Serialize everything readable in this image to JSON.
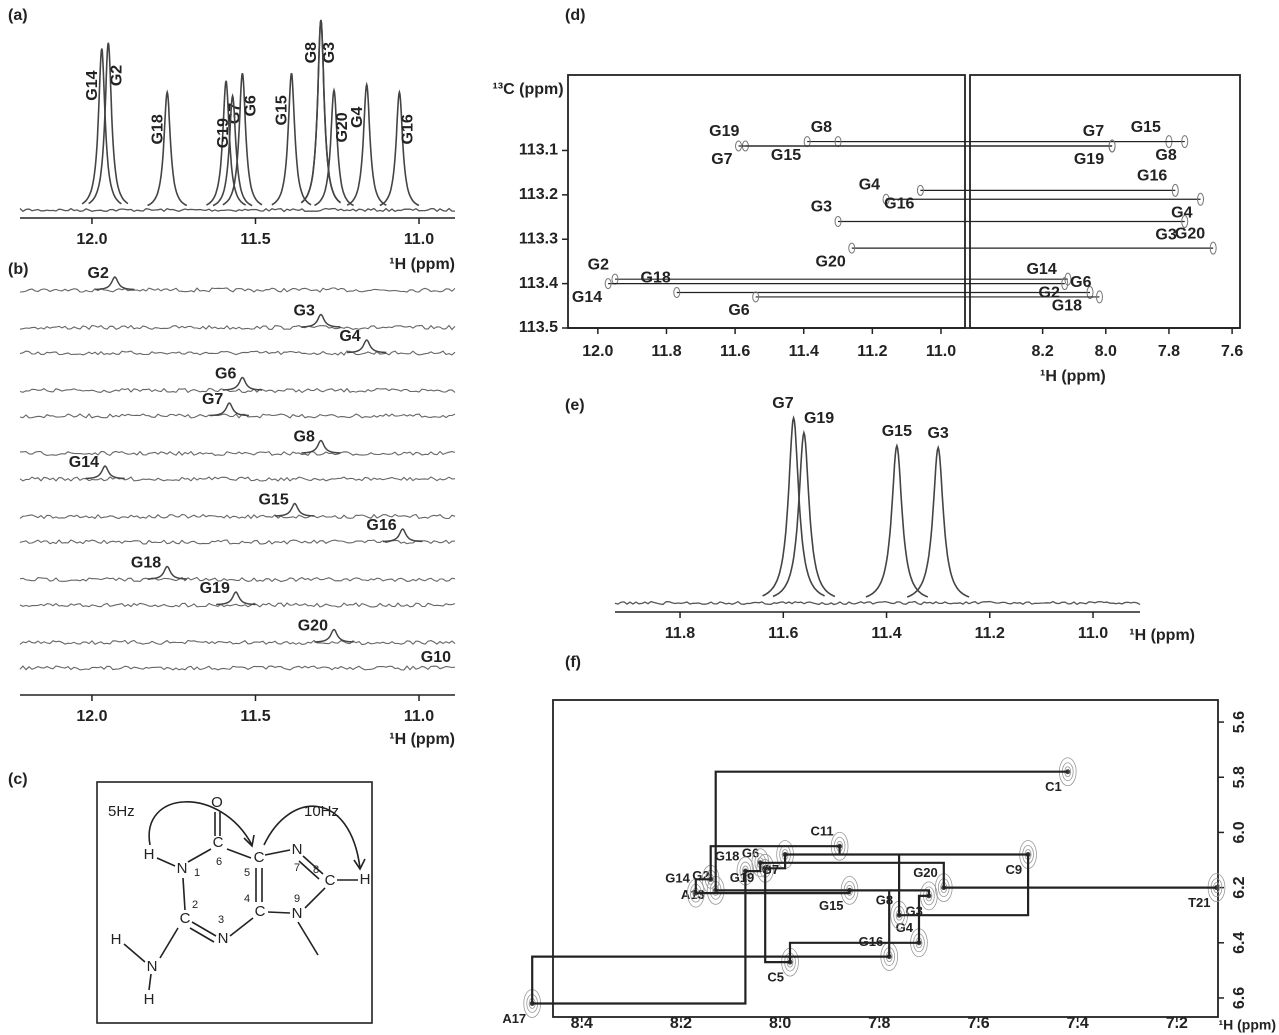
{
  "chart_data": [
    {
      "type": "spectrum",
      "panel": "(a)",
      "x_label": "¹H (ppm)",
      "xlim": [
        12.22,
        10.89
      ],
      "xticks": [
        {
          "value": 12,
          "label": "12.0"
        },
        {
          "value": 11.5,
          "label": "11.5"
        },
        {
          "value": 11,
          "label": "11.0"
        }
      ],
      "peaks": {
        "labels": [
          "G14",
          "G2",
          "G18",
          "G7",
          "G19",
          "G6",
          "G15",
          "G3",
          "G8",
          "G20",
          "G4",
          "G16"
        ],
        "x": [
          11.97,
          11.95,
          11.77,
          11.59,
          11.57,
          11.54,
          11.39,
          11.3,
          11.3,
          11.26,
          11.16,
          11.06
        ],
        "values": [
          85,
          88,
          62,
          68,
          60,
          72,
          72,
          100,
          100,
          63,
          66,
          62
        ]
      }
    },
    {
      "type": "stacked-spectra",
      "panel": "(b)",
      "x_label": "¹H (ppm)",
      "xlim": [
        12.22,
        10.89
      ],
      "xticks": [
        {
          "value": 12,
          "label": "12.0"
        },
        {
          "value": 11.5,
          "label": "11.5"
        },
        {
          "value": 11,
          "label": "11.0"
        }
      ],
      "series": [
        {
          "name": "G2",
          "peak": 11.93
        },
        {
          "name": "G3",
          "peak": 11.3
        },
        {
          "name": "G4",
          "peak": 11.16
        },
        {
          "name": "G6",
          "peak": 11.54
        },
        {
          "name": "G7",
          "peak": 11.58
        },
        {
          "name": "G8",
          "peak": 11.3
        },
        {
          "name": "G14",
          "peak": 11.96
        },
        {
          "name": "G15",
          "peak": 11.38
        },
        {
          "name": "G16",
          "peak": 11.05
        },
        {
          "name": "G18",
          "peak": 11.77
        },
        {
          "name": "G19",
          "peak": 11.56
        },
        {
          "name": "G20",
          "peak": 11.26
        },
        {
          "name": "G10",
          "peak": null
        }
      ]
    },
    {
      "type": "hsqc",
      "panel": "(d)",
      "x_label": "¹H (ppm)",
      "y_label": "¹³C (ppm)",
      "xlim": [
        12.087,
        10.93
      ],
      "xticks": [
        {
          "value": 12,
          "label": "12.0"
        },
        11.8,
        11.6,
        11.4,
        11.2,
        {
          "value": 11,
          "label": "11.0"
        }
      ],
      "x2lim": [
        8.43,
        7.575
      ],
      "x2ticks": [
        8.2,
        {
          "value": 8,
          "label": "8.0"
        },
        7.8,
        7.6
      ],
      "ylim": [
        112.93,
        113.5
      ],
      "yticks": [
        113.1,
        113.2,
        113.3,
        113.4,
        113.5
      ],
      "correlations": {
        "labels": [
          "G19",
          "G15",
          "G8",
          "G7",
          "G4",
          "G16",
          "G3",
          "G20",
          "G2",
          "G14",
          "G18",
          "G6"
        ],
        "h1": [
          11.57,
          11.39,
          11.3,
          11.59,
          11.16,
          11.06,
          11.3,
          11.26,
          11.95,
          11.97,
          11.77,
          11.54
        ],
        "h8": [
          7.98,
          7.8,
          7.75,
          7.98,
          7.7,
          7.78,
          7.75,
          7.66,
          8.12,
          8.13,
          8.05,
          8.02
        ],
        "c8": [
          113.09,
          113.08,
          113.08,
          113.09,
          113.21,
          113.19,
          113.26,
          113.32,
          113.39,
          113.4,
          113.42,
          113.43
        ]
      }
    },
    {
      "type": "spectrum",
      "panel": "(e)",
      "x_label": "¹H (ppm)",
      "xlim": [
        11.926,
        10.909
      ],
      "xticks": [
        11.8,
        11.6,
        11.4,
        11.2,
        {
          "value": 11,
          "label": "11.0"
        }
      ],
      "peaks": {
        "labels": [
          "G7",
          "G19",
          "G15",
          "G3"
        ],
        "x": [
          11.58,
          11.56,
          11.38,
          11.3
        ],
        "values": [
          100,
          92,
          85,
          84
        ]
      }
    },
    {
      "type": "noesy",
      "panel": "(f)",
      "x_label": "¹H (ppm)",
      "xlim": [
        8.458,
        7.117
      ],
      "xticks": [
        8.4,
        8.2,
        {
          "value": 8,
          "label": "8.0"
        },
        7.8,
        7.6,
        7.4,
        7.2
      ],
      "ylim": [
        5.52,
        6.669
      ],
      "yticks": [
        5.6,
        5.8,
        {
          "value": 6,
          "label": "6.0"
        },
        6.2,
        6.4,
        6.6
      ],
      "nodes": {
        "labels": [
          "C1",
          "G2",
          "G3",
          "G4",
          "C5",
          "G6",
          "G7",
          "G8",
          "C9",
          "C11",
          "A13",
          "G14",
          "G15",
          "G16",
          "A17",
          "G18",
          "G19",
          "G20",
          "T21"
        ],
        "x": [
          7.42,
          8.13,
          7.7,
          7.72,
          7.98,
          8.03,
          7.99,
          7.76,
          7.5,
          7.88,
          8.14,
          8.17,
          7.86,
          7.78,
          8.5,
          8.07,
          8.04,
          7.67,
          7.12
        ],
        "y": [
          5.78,
          6.21,
          6.23,
          6.4,
          6.47,
          6.13,
          6.08,
          6.3,
          6.08,
          6.05,
          6.17,
          6.22,
          6.21,
          6.45,
          6.62,
          6.14,
          6.11,
          6.2,
          6.2
        ]
      }
    }
  ],
  "diagram": {
    "panel": "(c)",
    "couplings": [
      "5Hz",
      "10Hz"
    ],
    "atoms": [
      "O",
      "C",
      "6",
      "H",
      "N",
      "1",
      "C",
      "2",
      "N",
      "3",
      "C",
      "4",
      "C",
      "5",
      "N",
      "7",
      "C",
      "8",
      "H",
      "N",
      "9",
      "H",
      "N",
      "H"
    ]
  }
}
